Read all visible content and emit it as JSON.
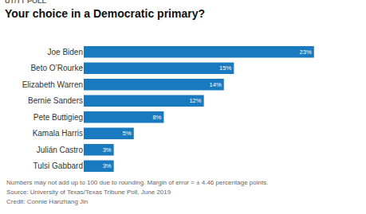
{
  "chart_data": {
    "type": "bar",
    "orientation": "horizontal",
    "subtitle": "UT/TT POLL",
    "title": "Your choice in a Democratic primary?",
    "categories": [
      "Joe Biden",
      "Beto O’Rourke",
      "Elizabeth Warren",
      "Bernie Sanders",
      "Pete Buttigieg",
      "Kamala Harris",
      "Julián Castro",
      "Tulsi Gabbard"
    ],
    "values": [
      23,
      15,
      14,
      12,
      8,
      5,
      3,
      3
    ],
    "value_labels": [
      "23%",
      "15%",
      "14%",
      "12%",
      "8%",
      "5%",
      "3%",
      "3%"
    ],
    "data_labels": true,
    "color": "#1a7abf",
    "xlim": [
      0,
      27
    ],
    "tick_labels": "y",
    "grid": false,
    "annotations": [
      "Numbers may not add up to 100 due to rounding. Margin of error = ± 4.46 percentage points.",
      "Source: University of Texas/Texas Tribune Poll, June 2019",
      "Credit: Connie Hanzhang Jin"
    ]
  }
}
